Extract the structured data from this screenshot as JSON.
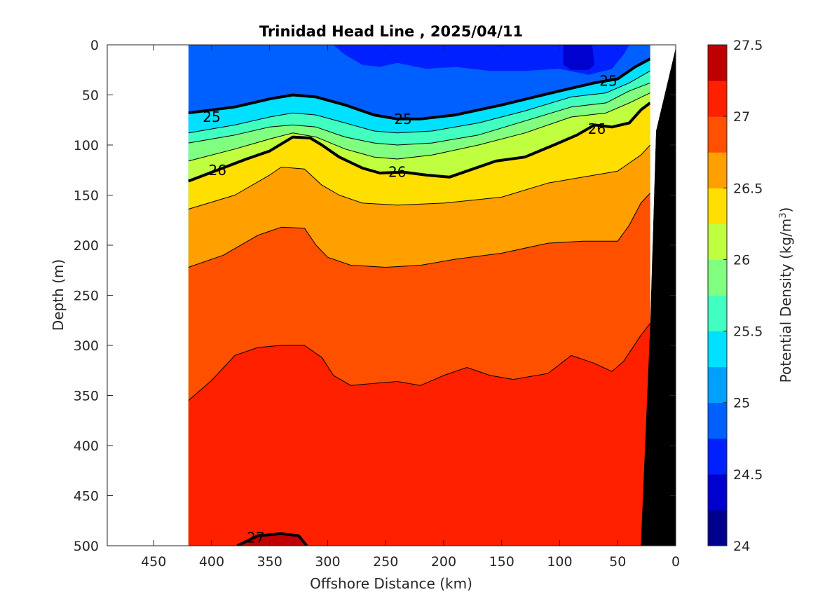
{
  "chart_data": {
    "type": "contour",
    "title": "Trinidad Head Line , 2025/04/11",
    "xlabel": "Offshore Distance (km)",
    "ylabel": "Depth (m)",
    "xlim": [
      490,
      0
    ],
    "ylim": [
      0,
      500
    ],
    "x_ticks": [
      450,
      400,
      350,
      300,
      250,
      200,
      150,
      100,
      50,
      0
    ],
    "y_ticks": [
      0,
      50,
      100,
      150,
      200,
      250,
      300,
      350,
      400,
      450,
      500
    ],
    "x_reversed": true,
    "y_reversed": true,
    "grid": false,
    "data_extent_km": [
      420,
      20
    ],
    "colorbar": {
      "label_prefix": "Potential Density (kg/m",
      "label_exponent": "3",
      "label_suffix": ")",
      "range": [
        24,
        27.5
      ],
      "ticks": [
        "24",
        "24.5",
        "25",
        "25.5",
        "26",
        "26.5",
        "27",
        "27.5"
      ],
      "level_step": 0.25,
      "colors": [
        "#00008F",
        "#0000CF",
        "#0020FF",
        "#0060FF",
        "#00A0FF",
        "#00E0FF",
        "#40FFC0",
        "#80FF80",
        "#C0FF40",
        "#FFDF00",
        "#FF9F00",
        "#FF5000",
        "#FF2000",
        "#C00000"
      ]
    },
    "bold_contour_labels": [
      {
        "text": "25",
        "x": 400,
        "depth": 72
      },
      {
        "text": "25",
        "x": 235,
        "depth": 74
      },
      {
        "text": "25",
        "x": 58,
        "depth": 36
      },
      {
        "text": "26",
        "x": 395,
        "depth": 125
      },
      {
        "text": "26",
        "x": 240,
        "depth": 127
      },
      {
        "text": "26",
        "x": 68,
        "depth": 84
      },
      {
        "text": "27",
        "x": 362,
        "depth": 492
      }
    ],
    "isopycnals": [
      {
        "level": 25.0,
        "bold": true,
        "points": [
          [
            420,
            68
          ],
          [
            380,
            62
          ],
          [
            350,
            54
          ],
          [
            330,
            50
          ],
          [
            310,
            52
          ],
          [
            285,
            60
          ],
          [
            260,
            70
          ],
          [
            240,
            74
          ],
          [
            220,
            74
          ],
          [
            190,
            70
          ],
          [
            150,
            60
          ],
          [
            100,
            46
          ],
          [
            70,
            38
          ],
          [
            50,
            34
          ],
          [
            35,
            22
          ],
          [
            22,
            14
          ]
        ]
      },
      {
        "level": 25.25,
        "bold": false,
        "points": [
          [
            420,
            88
          ],
          [
            380,
            80
          ],
          [
            350,
            72
          ],
          [
            330,
            68
          ],
          [
            310,
            70
          ],
          [
            285,
            78
          ],
          [
            260,
            86
          ],
          [
            240,
            88
          ],
          [
            210,
            86
          ],
          [
            170,
            78
          ],
          [
            130,
            66
          ],
          [
            90,
            52
          ],
          [
            60,
            48
          ],
          [
            40,
            38
          ],
          [
            22,
            26
          ]
        ]
      },
      {
        "level": 25.5,
        "bold": false,
        "points": [
          [
            420,
            98
          ],
          [
            380,
            90
          ],
          [
            350,
            82
          ],
          [
            330,
            80
          ],
          [
            310,
            82
          ],
          [
            285,
            92
          ],
          [
            260,
            98
          ],
          [
            240,
            100
          ],
          [
            210,
            98
          ],
          [
            170,
            90
          ],
          [
            130,
            76
          ],
          [
            90,
            62
          ],
          [
            60,
            58
          ],
          [
            40,
            46
          ],
          [
            22,
            38
          ]
        ]
      },
      {
        "level": 25.75,
        "bold": false,
        "points": [
          [
            420,
            116
          ],
          [
            380,
            104
          ],
          [
            350,
            94
          ],
          [
            330,
            88
          ],
          [
            310,
            92
          ],
          [
            285,
            104
          ],
          [
            260,
            112
          ],
          [
            240,
            114
          ],
          [
            210,
            110
          ],
          [
            170,
            100
          ],
          [
            130,
            88
          ],
          [
            90,
            72
          ],
          [
            60,
            68
          ],
          [
            40,
            58
          ],
          [
            22,
            48
          ]
        ]
      },
      {
        "level": 26.0,
        "bold": true,
        "points": [
          [
            420,
            136
          ],
          [
            395,
            125
          ],
          [
            370,
            114
          ],
          [
            350,
            106
          ],
          [
            330,
            92
          ],
          [
            315,
            93
          ],
          [
            305,
            100
          ],
          [
            290,
            112
          ],
          [
            270,
            123
          ],
          [
            255,
            128
          ],
          [
            235,
            127
          ],
          [
            215,
            130
          ],
          [
            195,
            132
          ],
          [
            175,
            124
          ],
          [
            155,
            116
          ],
          [
            130,
            112
          ],
          [
            105,
            100
          ],
          [
            85,
            90
          ],
          [
            70,
            80
          ],
          [
            55,
            82
          ],
          [
            40,
            78
          ],
          [
            30,
            65
          ],
          [
            22,
            58
          ]
        ]
      },
      {
        "level": 26.25,
        "bold": false,
        "points": [
          [
            420,
            164
          ],
          [
            380,
            150
          ],
          [
            350,
            130
          ],
          [
            340,
            122
          ],
          [
            320,
            124
          ],
          [
            305,
            140
          ],
          [
            290,
            150
          ],
          [
            270,
            158
          ],
          [
            240,
            160
          ],
          [
            200,
            158
          ],
          [
            150,
            152
          ],
          [
            110,
            138
          ],
          [
            80,
            132
          ],
          [
            50,
            126
          ],
          [
            30,
            110
          ],
          [
            22,
            100
          ]
        ]
      },
      {
        "level": 26.5,
        "bold": false,
        "points": [
          [
            420,
            222
          ],
          [
            390,
            210
          ],
          [
            360,
            190
          ],
          [
            340,
            182
          ],
          [
            320,
            183
          ],
          [
            310,
            200
          ],
          [
            300,
            212
          ],
          [
            280,
            220
          ],
          [
            250,
            222
          ],
          [
            220,
            220
          ],
          [
            190,
            214
          ],
          [
            150,
            208
          ],
          [
            110,
            198
          ],
          [
            80,
            196
          ],
          [
            50,
            196
          ],
          [
            40,
            180
          ],
          [
            30,
            158
          ],
          [
            22,
            148
          ]
        ]
      },
      {
        "level": 26.75,
        "bold": false,
        "points": [
          [
            420,
            355
          ],
          [
            400,
            335
          ],
          [
            380,
            310
          ],
          [
            360,
            302
          ],
          [
            340,
            300
          ],
          [
            320,
            300
          ],
          [
            305,
            312
          ],
          [
            295,
            330
          ],
          [
            280,
            340
          ],
          [
            260,
            338
          ],
          [
            240,
            336
          ],
          [
            220,
            340
          ],
          [
            200,
            330
          ],
          [
            180,
            322
          ],
          [
            160,
            330
          ],
          [
            140,
            334
          ],
          [
            110,
            328
          ],
          [
            90,
            310
          ],
          [
            70,
            318
          ],
          [
            55,
            326
          ],
          [
            45,
            316
          ],
          [
            30,
            290
          ],
          [
            22,
            278
          ]
        ]
      },
      {
        "level": 27.0,
        "bold": true,
        "points": [
          [
            378,
            500
          ],
          [
            360,
            490
          ],
          [
            340,
            488
          ],
          [
            325,
            490
          ],
          [
            318,
            500
          ]
        ]
      }
    ]
  }
}
